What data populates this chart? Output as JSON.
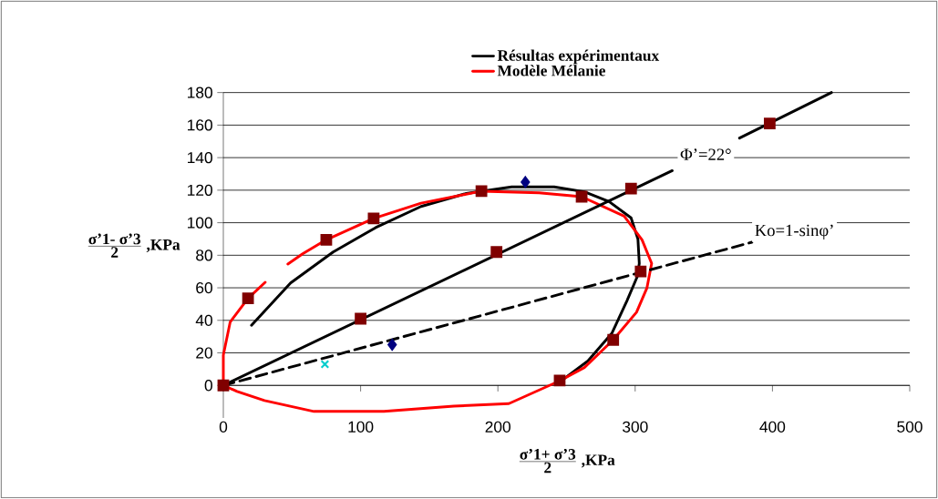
{
  "chart_data": {
    "type": "line",
    "xlabel": "\\frac{\\mbox{σ’1+ σ’3}}{\\mbox{2}}\\mbox{ ,KPa}",
    "ylabel": "\\frac{\\mbox{σ’1- σ’3}}{\\mbox{2}}\\mbox{ ,KPa}",
    "xlim": [
      0,
      500
    ],
    "xticks": [
      0,
      100,
      200,
      300,
      400,
      500
    ],
    "ylim": [
      -20,
      180
    ],
    "yticks": [
      0,
      20,
      40,
      60,
      80,
      100,
      120,
      140,
      160,
      180
    ],
    "grid": "y",
    "legend": "top",
    "annotations": [
      "Φ’=22°",
      "Ko=1-sinφ’"
    ],
    "series": [
      {
        "name": "Résultas expérimentaux",
        "type": "line",
        "color": "#000000",
        "x": [
          20.5,
          49,
          80,
          111,
          144,
          177,
          210,
          241,
          263,
          281,
          297,
          302,
          303,
          301.6,
          294,
          283,
          265.5,
          248
        ],
        "values": [
          37,
          63,
          82,
          97,
          110,
          118,
          122,
          122,
          119,
          113,
          103,
          90,
          75,
          67,
          52,
          32,
          15,
          4
        ]
      },
      {
        "name": "Modèle Mélanie",
        "type": "line",
        "color": "#ff0000",
        "x": [
          245,
          263,
          284,
          301,
          308.6,
          312,
          305,
          292,
          261,
          230,
          188,
          144,
          109.5,
          75,
          58,
          47,
          39,
          30.5,
          18,
          5,
          0,
          0,
          10,
          30,
          66,
          117,
          168,
          208,
          245
        ],
        "values": [
          2.8,
          11,
          28,
          45,
          60,
          75,
          89.5,
          104,
          116,
          118.4,
          119.4,
          112,
          102.6,
          89.5,
          81,
          74.6,
          null,
          63.4,
          53.5,
          39,
          18.6,
          0,
          -3.7,
          -9.3,
          -16,
          -16,
          -12.7,
          -11.2,
          2.8
        ]
      },
      {
        "type": "line",
        "color": "#000000",
        "x": [
          0,
          327,
          351,
          376,
          443
        ],
        "values": [
          0,
          132,
          null,
          152,
          180
        ]
      },
      {
        "type": "line",
        "color": "#000000",
        "line_style": "dashed",
        "x": [
          0,
          385
        ],
        "values": [
          0,
          88
        ]
      },
      {
        "type": "scatter",
        "color": "#800000",
        "marker": "square",
        "x": [
          0,
          18,
          75,
          109.5,
          188,
          261,
          304,
          284,
          245,
          100,
          199,
          297,
          398
        ],
        "values": [
          0,
          53.5,
          89.5,
          102.6,
          119.4,
          116,
          70,
          28,
          3,
          41,
          82,
          121,
          161
        ]
      },
      {
        "type": "scatter",
        "color": "#000080",
        "marker": "diamond",
        "x": [
          123,
          220
        ],
        "values": [
          25,
          125
        ]
      },
      {
        "type": "scatter",
        "color": "#00cccc",
        "marker": "cross",
        "x": [
          74
        ],
        "values": [
          13
        ]
      }
    ]
  }
}
